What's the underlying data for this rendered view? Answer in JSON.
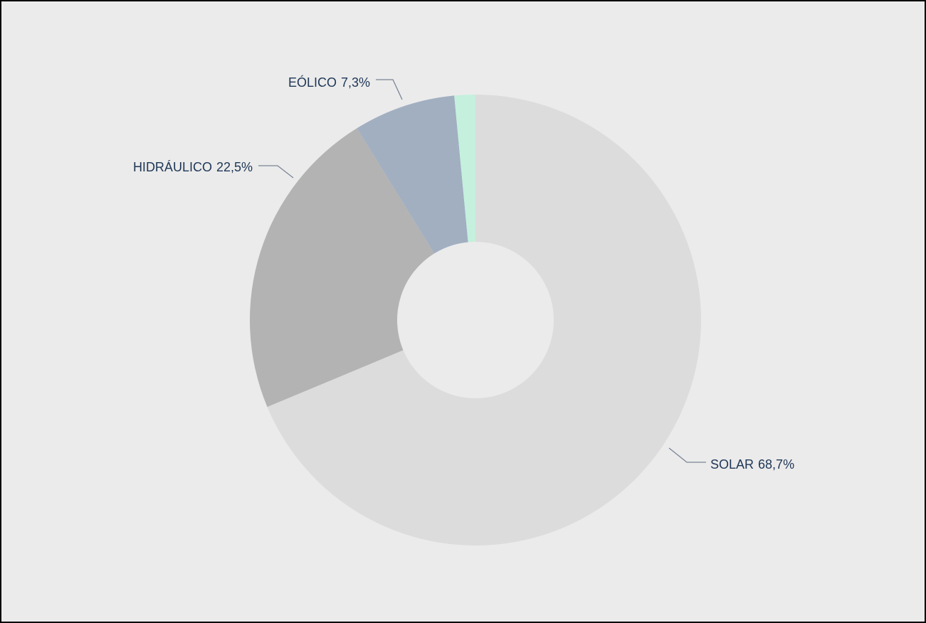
{
  "chart_data": {
    "type": "donut",
    "categories": [
      "SOLAR",
      "HIDRÁULICO",
      "EÓLICO",
      null
    ],
    "values": [
      68.7,
      22.5,
      7.3,
      1.5
    ],
    "value_labels": [
      "68,7%",
      "22,5%",
      "7,3%",
      null
    ],
    "colors": [
      "#dcdcdc",
      "#b3b3b3",
      "#a1afc1",
      "#c4f0dd"
    ]
  }
}
